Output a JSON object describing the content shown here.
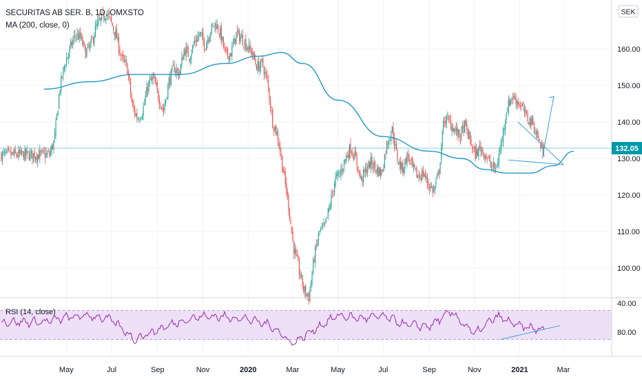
{
  "header": {
    "symbol": "SECURITAS AB SER. B, 1D, OMXSTO",
    "indicator": "MA (200, close, 0)",
    "currency": "SEK"
  },
  "rsi": {
    "label": "RSI (14, close)",
    "ticks": [
      "80.00",
      "40.00"
    ]
  },
  "price_axis": {
    "ticks": [
      "160.00",
      "150.00",
      "140.00",
      "130.00",
      "120.00",
      "110.00",
      "100.00"
    ],
    "last_price": "132.05"
  },
  "time_axis": {
    "labels": [
      "May",
      "Jul",
      "Sep",
      "Nov",
      "2020",
      "Mar",
      "May",
      "Jul",
      "Sep",
      "Nov",
      "2021",
      "Mar"
    ]
  },
  "colors": {
    "up": "#26a69a",
    "down": "#ef5350",
    "ma": "#2196c8",
    "rsi_line": "#9c27b0",
    "rsi_band": "#ede0f7",
    "drawing": "#3aa0d8",
    "price_badge": "#0097a7"
  },
  "chart_data": [
    {
      "type": "candlestick",
      "series": [
        {
          "name": "SECURITAS AB SER. B",
          "close": [
            131,
            135,
            149,
            156,
            160,
            164,
            163,
            159,
            161,
            166,
            168,
            170,
            167,
            163,
            157,
            155,
            144,
            141,
            143,
            150,
            152,
            147,
            143,
            151,
            155,
            153,
            160,
            158,
            162,
            164,
            161,
            165,
            167,
            164,
            158,
            159,
            164,
            163,
            161,
            159,
            155,
            156,
            151,
            140,
            136,
            127,
            118,
            106,
            100,
            94,
            92,
            103,
            110,
            111,
            117,
            124,
            126,
            130,
            133,
            130,
            124,
            127,
            129,
            127,
            126,
            134,
            138,
            130,
            127,
            131,
            127,
            125,
            126,
            123,
            121,
            126,
            141,
            140,
            138,
            136,
            139,
            135,
            131,
            133,
            131,
            128,
            127,
            134,
            143,
            147,
            146,
            144,
            141,
            140,
            136,
            132,
            131,
            136,
            134,
            131,
            130,
            132.05
          ],
          "x": [
            "2019-04-08",
            "2019-04-15",
            "2019-04-22",
            "2019-04-29",
            "2019-05-06",
            "2019-05-13",
            "2019-05-20",
            "2019-05-27",
            "2019-06-03",
            "2019-06-10",
            "2019-06-17",
            "2019-06-24",
            "2019-07-01",
            "2019-07-08",
            "2019-07-15",
            "2019-07-22",
            "2019-07-29",
            "2019-08-05",
            "2019-08-12",
            "2019-08-19",
            "2019-08-26",
            "2019-09-02",
            "2019-09-09",
            "2019-09-16",
            "2019-09-23",
            "2019-09-30",
            "2019-10-07",
            "2019-10-14",
            "2019-10-21",
            "2019-10-28",
            "2019-11-04",
            "2019-11-11",
            "2019-11-18",
            "2019-11-25",
            "2019-12-02",
            "2019-12-09",
            "2019-12-16",
            "2019-12-23",
            "2019-12-30",
            "2020-01-06",
            "2020-01-13",
            "2020-01-20",
            "2020-01-27",
            "2020-02-03",
            "2020-02-10",
            "2020-02-17",
            "2020-02-24",
            "2020-03-02",
            "2020-03-09",
            "2020-03-16",
            "2020-03-23",
            "2020-03-30",
            "2020-04-06",
            "2020-04-13",
            "2020-04-20",
            "2020-04-27",
            "2020-05-04",
            "2020-05-11",
            "2020-05-18",
            "2020-05-25",
            "2020-06-01",
            "2020-06-08",
            "2020-06-15",
            "2020-06-22",
            "2020-06-29",
            "2020-07-06",
            "2020-07-13",
            "2020-07-20",
            "2020-07-27",
            "2020-08-03",
            "2020-08-10",
            "2020-08-17",
            "2020-08-24",
            "2020-08-31",
            "2020-09-07",
            "2020-09-14",
            "2020-09-21",
            "2020-09-28",
            "2020-10-05",
            "2020-10-12",
            "2020-10-19",
            "2020-10-26",
            "2020-11-02",
            "2020-11-09",
            "2020-11-16",
            "2020-11-23",
            "2020-11-30",
            "2020-12-07",
            "2020-12-14",
            "2020-12-21",
            "2020-12-28",
            "2021-01-04",
            "2021-01-11",
            "2021-01-18",
            "2021-01-25",
            "2021-02-01",
            "2021-02-08",
            "2021-02-15",
            "2021-02-22",
            "2021-03-01",
            "2021-03-08",
            "2021-03-15"
          ]
        },
        {
          "name": "MA (200, close, 0)",
          "x": [
            "2019-04-01",
            "2019-06-01",
            "2019-08-01",
            "2019-10-01",
            "2019-12-01",
            "2020-01-15",
            "2020-02-15",
            "2020-03-15",
            "2020-05-01",
            "2020-07-01",
            "2020-09-01",
            "2020-10-15",
            "2020-11-15",
            "2020-12-15",
            "2021-01-15",
            "2021-02-15",
            "2021-03-15"
          ],
          "values": [
            149,
            151,
            153,
            153,
            156,
            158,
            159,
            156,
            146,
            136,
            132,
            130,
            127,
            126,
            126,
            128,
            132
          ]
        }
      ],
      "ylim": [
        90,
        168
      ],
      "grid": true,
      "last_value": 132.05
    },
    {
      "type": "line",
      "series": [
        {
          "name": "RSI (14, close)",
          "x": [
            "2019-04",
            "2019-05",
            "2019-06",
            "2019-07",
            "2019-08",
            "2019-09",
            "2019-10",
            "2019-11",
            "2019-12",
            "2020-01",
            "2020-02",
            "2020-03",
            "2020-04",
            "2020-05",
            "2020-06",
            "2020-07",
            "2020-08",
            "2020-09",
            "2020-10",
            "2020-11",
            "2020-12",
            "2021-01",
            "2021-02",
            "2021-03"
          ],
          "values": [
            54,
            60,
            63,
            57,
            30,
            43,
            55,
            62,
            61,
            58,
            49,
            24,
            45,
            63,
            59,
            62,
            50,
            48,
            68,
            37,
            62,
            48,
            43,
            50
          ]
        }
      ],
      "band": [
        30,
        70
      ],
      "ylim": [
        20,
        85
      ],
      "ticks": [
        40,
        80
      ]
    }
  ]
}
